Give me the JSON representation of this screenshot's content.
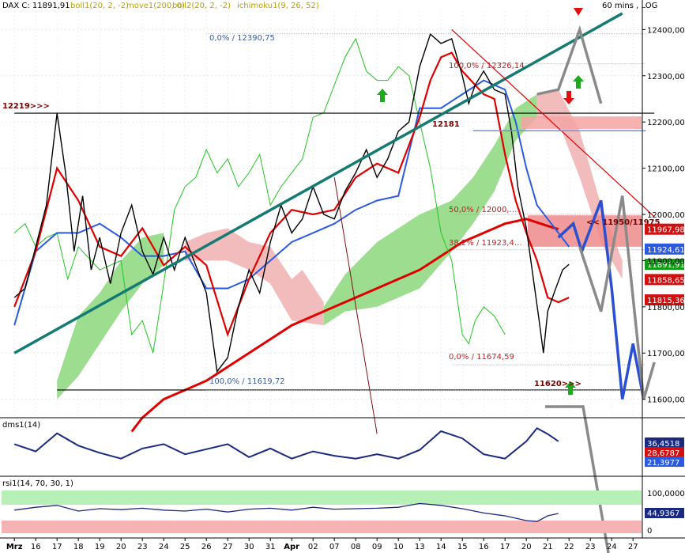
{
  "header": {
    "instrument": "DAX C: 11891,91",
    "indicators": [
      {
        "text": "boll1(20, 2, -2)",
        "color": "#b8a000"
      },
      {
        "text": "move1(200, 0)",
        "color": "#b8a000"
      },
      {
        "text": "boll2(20, 2, -2)",
        "color": "#b8a000"
      },
      {
        "text": "ichimoku1(9, 26, 52)",
        "color": "#b8a000"
      }
    ],
    "timeframe": "60 mins , LOG"
  },
  "colors": {
    "price": "#000000",
    "bollinger": "#e00000",
    "kijun": "#2a5ae0",
    "chikou": "#22c522",
    "ma200": "#e00000",
    "trend": "#157a72",
    "cloud_bull": "#9ddd8f",
    "cloud_bear": "#f2bcbc",
    "forecast_gray": "#8a8a8a",
    "forecast_blue": "#2a4fd0"
  },
  "chart_data": {
    "type": "line",
    "x_ticks": [
      "Mrz",
      "16",
      "17",
      "18",
      "19",
      "20",
      "23",
      "24",
      "25",
      "26",
      "27",
      "30",
      "31",
      "Apr",
      "02",
      "07",
      "08",
      "09",
      "10",
      "13",
      "14",
      "15",
      "16",
      "17",
      "20",
      "21",
      "22",
      "23",
      "24",
      "27"
    ],
    "ylim": [
      11560,
      12440
    ],
    "y_ticks": [
      {
        "v": 12400,
        "label": "12400,00"
      },
      {
        "v": 12300,
        "label": "12300,00"
      },
      {
        "v": 12200,
        "label": "12200,00"
      },
      {
        "v": 12100,
        "label": "12100,00"
      },
      {
        "v": 12000,
        "label": "12000,00"
      },
      {
        "v": 11900,
        "label": "11900,00"
      },
      {
        "v": 11800,
        "label": "11800,00"
      },
      {
        "v": 11700,
        "label": "11700,00"
      },
      {
        "v": 11600,
        "label": "11600,00"
      }
    ],
    "price_series": [
      [
        0,
        11820
      ],
      [
        0.5,
        11840
      ],
      [
        1,
        11930
      ],
      [
        1.5,
        12020
      ],
      [
        2,
        12219
      ],
      [
        2.4,
        12090
      ],
      [
        2.8,
        11920
      ],
      [
        3.2,
        12040
      ],
      [
        3.6,
        11880
      ],
      [
        4,
        11950
      ],
      [
        4.5,
        11850
      ],
      [
        5,
        11960
      ],
      [
        5.5,
        12020
      ],
      [
        6,
        11920
      ],
      [
        6.5,
        11870
      ],
      [
        7,
        11950
      ],
      [
        7.5,
        11880
      ],
      [
        8,
        11950
      ],
      [
        8.5,
        11890
      ],
      [
        9,
        11830
      ],
      [
        9.5,
        11660
      ],
      [
        10,
        11690
      ],
      [
        10.5,
        11800
      ],
      [
        11,
        11880
      ],
      [
        11.5,
        11830
      ],
      [
        12,
        11940
      ],
      [
        12.5,
        12020
      ],
      [
        13,
        11960
      ],
      [
        13.5,
        11990
      ],
      [
        14,
        12060
      ],
      [
        14.5,
        12000
      ],
      [
        15,
        11990
      ],
      [
        15.5,
        12050
      ],
      [
        16,
        12090
      ],
      [
        16.5,
        12140
      ],
      [
        17,
        12080
      ],
      [
        17.5,
        12120
      ],
      [
        18,
        12180
      ],
      [
        18.5,
        12200
      ],
      [
        19,
        12320
      ],
      [
        19.5,
        12390
      ],
      [
        20,
        12370
      ],
      [
        20.5,
        12380
      ],
      [
        21,
        12300
      ],
      [
        21.3,
        12240
      ],
      [
        21.6,
        12280
      ],
      [
        22,
        12310
      ],
      [
        22.5,
        12270
      ],
      [
        23,
        12260
      ],
      [
        23.3,
        12180
      ],
      [
        23.6,
        12060
      ],
      [
        24,
        11970
      ],
      [
        24.3,
        11870
      ],
      [
        24.6,
        11770
      ],
      [
        24.8,
        11700
      ],
      [
        25,
        11790
      ],
      [
        25.3,
        11830
      ],
      [
        25.7,
        11880
      ],
      [
        26,
        11892
      ]
    ],
    "bollinger_series": [
      [
        0,
        11800
      ],
      [
        1,
        11920
      ],
      [
        2,
        12100
      ],
      [
        3,
        12030
      ],
      [
        4,
        11930
      ],
      [
        5,
        11910
      ],
      [
        6,
        11970
      ],
      [
        7,
        11890
      ],
      [
        8,
        11930
      ],
      [
        9,
        11890
      ],
      [
        10,
        11740
      ],
      [
        11,
        11860
      ],
      [
        12,
        11960
      ],
      [
        13,
        12010
      ],
      [
        14,
        12000
      ],
      [
        15,
        12010
      ],
      [
        16,
        12080
      ],
      [
        17,
        12110
      ],
      [
        18,
        12090
      ],
      [
        19,
        12210
      ],
      [
        19.5,
        12290
      ],
      [
        20,
        12340
      ],
      [
        20.5,
        12350
      ],
      [
        21,
        12310
      ],
      [
        22,
        12260
      ],
      [
        22.5,
        12250
      ],
      [
        23,
        12130
      ],
      [
        23.5,
        12030
      ],
      [
        24,
        11960
      ],
      [
        24.5,
        11900
      ],
      [
        25,
        11820
      ],
      [
        25.5,
        11810
      ],
      [
        26,
        11820
      ]
    ],
    "kijun_series": [
      [
        0,
        11760
      ],
      [
        1,
        11920
      ],
      [
        2,
        11960
      ],
      [
        3,
        11960
      ],
      [
        4,
        11980
      ],
      [
        5,
        11950
      ],
      [
        6,
        11910
      ],
      [
        7,
        11910
      ],
      [
        8,
        11920
      ],
      [
        9,
        11840
      ],
      [
        10,
        11840
      ],
      [
        11,
        11860
      ],
      [
        12,
        11900
      ],
      [
        13,
        11940
      ],
      [
        14,
        11960
      ],
      [
        15,
        11980
      ],
      [
        16,
        12010
      ],
      [
        17,
        12030
      ],
      [
        18,
        12040
      ],
      [
        19,
        12230
      ],
      [
        20,
        12230
      ],
      [
        21,
        12260
      ],
      [
        22,
        12290
      ],
      [
        23,
        12270
      ],
      [
        23.5,
        12200
      ],
      [
        24,
        12100
      ],
      [
        24.5,
        12020
      ],
      [
        25,
        11990
      ],
      [
        26,
        11930
      ]
    ],
    "chikou_series": [
      [
        0,
        11960
      ],
      [
        0.5,
        11980
      ],
      [
        1,
        11930
      ],
      [
        1.5,
        11950
      ],
      [
        2,
        11960
      ],
      [
        2.5,
        11860
      ],
      [
        3,
        11930
      ],
      [
        4,
        11880
      ],
      [
        5,
        11900
      ],
      [
        5.5,
        11740
      ],
      [
        6,
        11770
      ],
      [
        6.5,
        11700
      ],
      [
        7,
        11850
      ],
      [
        7.5,
        12010
      ],
      [
        8,
        12060
      ],
      [
        8.5,
        12080
      ],
      [
        9,
        12140
      ],
      [
        9.5,
        12090
      ],
      [
        10,
        12120
      ],
      [
        10.5,
        12060
      ],
      [
        11,
        12090
      ],
      [
        11.5,
        12130
      ],
      [
        12,
        12020
      ],
      [
        12.5,
        12060
      ],
      [
        13,
        12090
      ],
      [
        13.5,
        12120
      ],
      [
        14,
        12210
      ],
      [
        14.5,
        12220
      ],
      [
        15,
        12280
      ],
      [
        15.5,
        12340
      ],
      [
        16,
        12380
      ],
      [
        16.5,
        12310
      ],
      [
        17,
        12290
      ],
      [
        17.5,
        12290
      ],
      [
        18,
        12320
      ],
      [
        18.5,
        12300
      ],
      [
        19,
        12200
      ],
      [
        19.5,
        12100
      ],
      [
        20,
        11960
      ],
      [
        20.5,
        11900
      ],
      [
        21,
        11740
      ],
      [
        21.3,
        11720
      ],
      [
        21.6,
        11770
      ],
      [
        22,
        11800
      ],
      [
        22.5,
        11780
      ],
      [
        23,
        11740
      ]
    ],
    "ma200_series": [
      [
        5.5,
        11530
      ],
      [
        6,
        11560
      ],
      [
        7,
        11600
      ],
      [
        8,
        11620
      ],
      [
        9,
        11640
      ],
      [
        10,
        11670
      ],
      [
        11,
        11700
      ],
      [
        12,
        11730
      ],
      [
        13,
        11760
      ],
      [
        14,
        11780
      ],
      [
        15,
        11800
      ],
      [
        16,
        11820
      ],
      [
        17,
        11840
      ],
      [
        18,
        11860
      ],
      [
        19,
        11880
      ],
      [
        20,
        11910
      ],
      [
        21,
        11940
      ],
      [
        22,
        11960
      ],
      [
        23,
        11980
      ],
      [
        24,
        11990
      ],
      [
        25,
        11975
      ],
      [
        25.5,
        11968
      ]
    ],
    "trend_line": [
      [
        0,
        11700
      ],
      [
        28.5,
        12435
      ]
    ],
    "resistance_line": [
      [
        20.5,
        12400
      ],
      [
        30,
        11995
      ]
    ],
    "support_line_12219": [
      [
        0,
        12219
      ],
      [
        30,
        12219
      ]
    ],
    "support_line_11620": [
      [
        2,
        11620
      ],
      [
        30,
        11620
      ]
    ],
    "fib_levels": [
      {
        "label": "0,0% / 12390,75",
        "value": 12390.75
      },
      {
        "label": "100,0% / 12326,14",
        "value": 12326.14
      },
      {
        "label": "50,0% / 12000,…",
        "value": 12000
      },
      {
        "label": "38,2% / 11923,4…",
        "value": 11923.4
      },
      {
        "label": "0,0% / 11674,59",
        "value": 11674.59
      },
      {
        "label": "100,0% / 11619,72",
        "value": 11619.72
      }
    ],
    "annotations": [
      {
        "text": "12219>>>",
        "color": "#7a0000"
      },
      {
        "text": "12181",
        "color": "#7a0000"
      },
      {
        "text": "<< 11950/11975",
        "color": "#7a0000"
      },
      {
        "text": "11620>>>",
        "color": "#7a0000"
      }
    ],
    "price_tags": [
      {
        "label": "11967,98",
        "bg": "#d01010",
        "fg": "#ffffff"
      },
      {
        "label": "11924,61",
        "bg": "#2a5ae0",
        "fg": "#ffffff"
      },
      {
        "label": "11891,91",
        "bg": "#149a14",
        "fg": "#ffffff"
      },
      {
        "label": "11858,65",
        "bg": "#d01010",
        "fg": "#ffffff"
      },
      {
        "label": "11815,36",
        "bg": "#d01010",
        "fg": "#ffffff"
      }
    ],
    "dms_panel": {
      "label": "dms1(14)",
      "tags": [
        {
          "label": "36,4518",
          "bg": "#1a2a80",
          "fg": "#ffffff"
        },
        {
          "label": "28,6787",
          "bg": "#d01010",
          "fg": "#ffffff"
        },
        {
          "label": "21,3977",
          "bg": "#2a5ae0",
          "fg": "#ffffff"
        }
      ],
      "values": [
        [
          0,
          40
        ],
        [
          1,
          30
        ],
        [
          2,
          55
        ],
        [
          3,
          38
        ],
        [
          4,
          28
        ],
        [
          5,
          20
        ],
        [
          6,
          34
        ],
        [
          7,
          40
        ],
        [
          8,
          26
        ],
        [
          9,
          33
        ],
        [
          10,
          40
        ],
        [
          11,
          22
        ],
        [
          12,
          34
        ],
        [
          13,
          20
        ],
        [
          14,
          30
        ],
        [
          15,
          24
        ],
        [
          16,
          20
        ],
        [
          17,
          26
        ],
        [
          18,
          20
        ],
        [
          19,
          32
        ],
        [
          20,
          58
        ],
        [
          21,
          48
        ],
        [
          22,
          26
        ],
        [
          23,
          20
        ],
        [
          24,
          44
        ],
        [
          24.5,
          62
        ],
        [
          25,
          54
        ],
        [
          25.5,
          44
        ]
      ]
    },
    "rsi_panel": {
      "label": "rsi1(14, 70, 30, 1)",
      "y_labels": [
        "100,0000",
        "0"
      ],
      "tag": {
        "label": "44,9367",
        "bg": "#1a2a80",
        "fg": "#ffffff"
      },
      "values": [
        [
          0,
          52
        ],
        [
          1,
          58
        ],
        [
          2,
          62
        ],
        [
          3,
          50
        ],
        [
          4,
          55
        ],
        [
          5,
          53
        ],
        [
          6,
          56
        ],
        [
          7,
          52
        ],
        [
          8,
          50
        ],
        [
          9,
          54
        ],
        [
          10,
          48
        ],
        [
          11,
          54
        ],
        [
          12,
          56
        ],
        [
          13,
          52
        ],
        [
          14,
          58
        ],
        [
          15,
          54
        ],
        [
          16,
          55
        ],
        [
          17,
          56
        ],
        [
          18,
          58
        ],
        [
          19,
          66
        ],
        [
          20,
          62
        ],
        [
          21,
          55
        ],
        [
          22,
          46
        ],
        [
          23,
          40
        ],
        [
          24,
          30
        ],
        [
          24.5,
          28
        ],
        [
          25,
          40
        ],
        [
          25.5,
          45
        ]
      ]
    }
  }
}
